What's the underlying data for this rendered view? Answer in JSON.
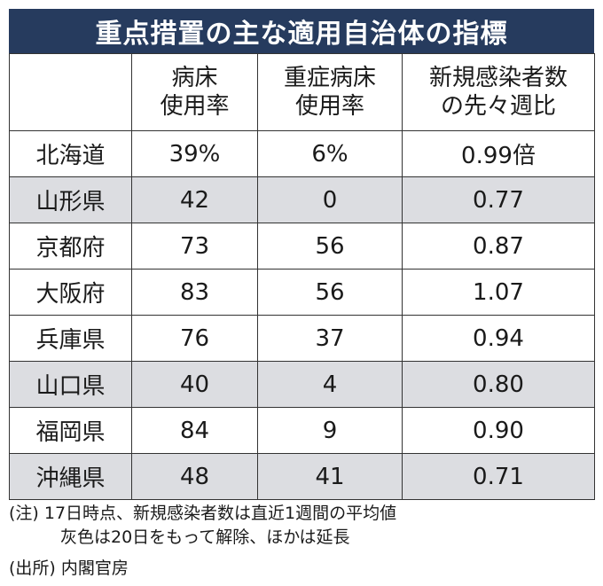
{
  "title": "重点措置の主な適用自治体の指標",
  "headers": [
    {
      "line1": "",
      "line2": ""
    },
    {
      "line1": "病床",
      "line2": "使用率"
    },
    {
      "line1": "重症病床",
      "line2": "使用率"
    },
    {
      "line1": "新規感染者数",
      "line2": "の先々週比"
    }
  ],
  "rows": [
    {
      "pref": "北海道",
      "bed": "39%",
      "severe": "6%",
      "ratio": "0.99倍",
      "gray": false
    },
    {
      "pref": "山形県",
      "bed": "42",
      "severe": "0",
      "ratio": "0.77",
      "gray": true
    },
    {
      "pref": "京都府",
      "bed": "73",
      "severe": "56",
      "ratio": "0.87",
      "gray": false
    },
    {
      "pref": "大阪府",
      "bed": "83",
      "severe": "56",
      "ratio": "1.07",
      "gray": false
    },
    {
      "pref": "兵庫県",
      "bed": "76",
      "severe": "37",
      "ratio": "0.94",
      "gray": false
    },
    {
      "pref": "山口県",
      "bed": "40",
      "severe": "4",
      "ratio": "0.80",
      "gray": true
    },
    {
      "pref": "福岡県",
      "bed": "84",
      "severe": "9",
      "ratio": "0.90",
      "gray": false
    },
    {
      "pref": "沖縄県",
      "bed": "48",
      "severe": "41",
      "ratio": "0.71",
      "gray": true
    }
  ],
  "notes": {
    "note1": "(注) 17日時点、新規感染者数は直近1週間の平均値",
    "note2": "灰色は20日をもって解除、ほかは延長",
    "source": "(出所) 内閣官房"
  }
}
